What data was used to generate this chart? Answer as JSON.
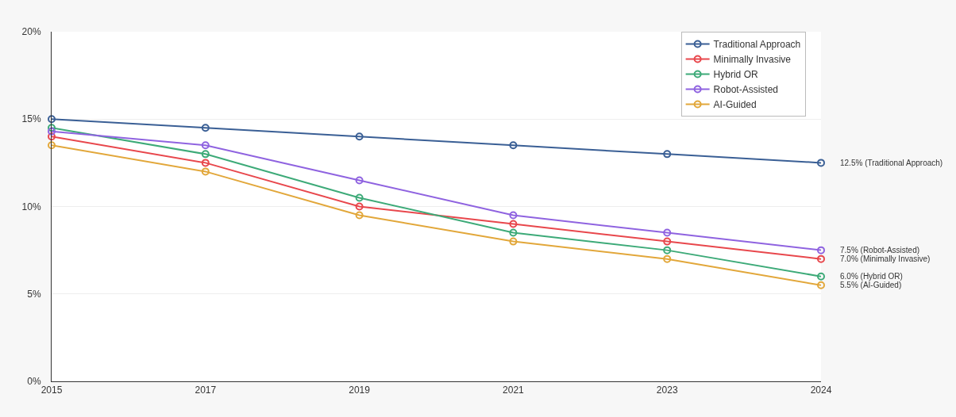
{
  "chart_data": {
    "type": "line",
    "categories": [
      "2015",
      "2017",
      "2019",
      "2021",
      "2023",
      "2024"
    ],
    "series": [
      {
        "name": "Traditional Approach",
        "color": "#3a5f95",
        "values": [
          15,
          14.5,
          14,
          13.5,
          13,
          12.5
        ]
      },
      {
        "name": "Minimally Invasive",
        "color": "#e8474c",
        "values": [
          14,
          12.5,
          10,
          9,
          8,
          7
        ]
      },
      {
        "name": "Hybrid OR",
        "color": "#3daa78",
        "values": [
          14.5,
          13,
          10.5,
          8.5,
          7.5,
          6
        ]
      },
      {
        "name": "Robot-Assisted",
        "color": "#8f63e0",
        "values": [
          14.3,
          13.5,
          11.5,
          9.5,
          8.5,
          7.5
        ]
      },
      {
        "name": "AI-Guided",
        "color": "#e2a73a",
        "values": [
          13.5,
          12,
          9.5,
          8,
          7,
          5.5
        ]
      }
    ],
    "ylim": [
      0,
      20
    ],
    "yticks": [
      {
        "value": 0,
        "label": "0%"
      },
      {
        "value": 5,
        "label": "5%"
      },
      {
        "value": 10,
        "label": "10%"
      },
      {
        "value": 15,
        "label": "15%"
      },
      {
        "value": 20,
        "label": "20%"
      }
    ],
    "annotations": [
      {
        "text": "12.5% (Traditional Approach)",
        "x": "2024",
        "y": 12.5
      },
      {
        "text": "7.5% (Robot-Assisted)",
        "x": "2024",
        "y": 7.5
      },
      {
        "text": "7.0% (Minimally Invasive)",
        "x": "2024",
        "y": 7
      },
      {
        "text": "6.0% (Hybrid OR)",
        "x": "2024",
        "y": 6
      },
      {
        "text": "5.5% (AI-Guided)",
        "x": "2024",
        "y": 5.5
      }
    ],
    "grid": "y",
    "legend": "top right",
    "marker": "circle",
    "line_style": "solid"
  }
}
